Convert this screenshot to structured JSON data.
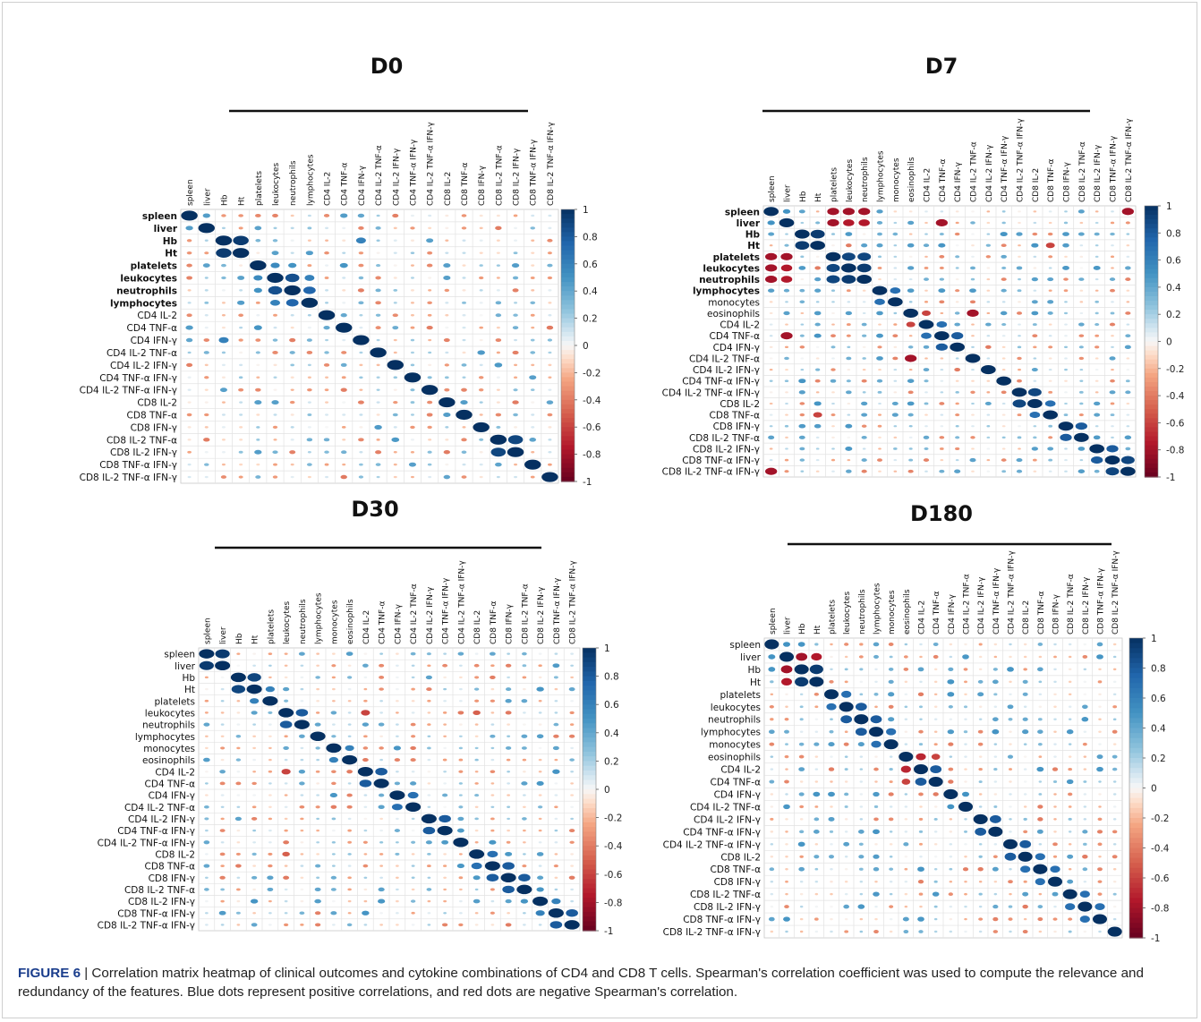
{
  "figure": {
    "label": "FIGURE 6",
    "caption": " | Correlation matrix heatmap of clinical outcomes and cytokine combinations of CD4 and CD8 T cells. Spearman's correlation coefficient was used to compute the relevance and redundancy of the features. Blue dots represent positive correlations, and red dots are negative Spearman's correlation."
  },
  "colors": {
    "strong_positive": "#053061",
    "strong_negative": "#67001f",
    "neutral": "#f7f7f7"
  },
  "chart_data": [
    {
      "type": "heatmap",
      "panel": "D0",
      "variables": [
        "spleen",
        "liver",
        "Hb",
        "Ht",
        "platelets",
        "leukocytes",
        "neutrophils",
        "lymphocytes",
        "CD4 IL-2",
        "CD4 TNF-α",
        "CD4 IFN-γ",
        "CD4 IL-2 TNF-α",
        "CD4 IL-2 IFN-γ",
        "CD4 TNF-α IFN-γ",
        "CD4 IL-2 TNF-α IFN-γ",
        "CD8 IL-2",
        "CD8 TNF-α",
        "CD8 IFN-γ",
        "CD8 IL-2 TNF-α",
        "CD8 IL-2 IFN-γ",
        "CD8 TNF-α IFN-γ",
        "CD8 IL-2 TNF-α IFN-γ"
      ],
      "strong": [
        [
          0,
          1,
          0.45
        ],
        [
          2,
          3,
          0.95
        ],
        [
          2,
          10,
          0.6
        ],
        [
          4,
          5,
          0.55
        ],
        [
          4,
          6,
          0.5
        ],
        [
          5,
          6,
          0.85
        ],
        [
          5,
          7,
          0.6
        ],
        [
          6,
          7,
          0.75
        ],
        [
          0,
          9,
          0.45
        ],
        [
          18,
          19,
          0.9
        ],
        [
          15,
          16,
          0.45
        ],
        [
          13,
          17,
          -0.3
        ],
        [
          8,
          19,
          0.3
        ],
        [
          1,
          18,
          -0.4
        ]
      ],
      "colorbar_ticks": [
        1,
        0.8,
        0.6,
        0.4,
        0.2,
        0,
        -0.2,
        -0.4,
        -0.6,
        -0.8,
        -1
      ],
      "range": [
        -1,
        1
      ]
    },
    {
      "type": "heatmap",
      "panel": "D7",
      "variables": [
        "spleen",
        "liver",
        "Hb",
        "Ht",
        "platelets",
        "leukocytes",
        "neutrophils",
        "lymphocytes",
        "monocytes",
        "eosinophils",
        "CD4 IL-2",
        "CD4 TNF-α",
        "CD4 IFN-γ",
        "CD4 IL-2 TNF-α",
        "CD4 IL-2 IFN-γ",
        "CD4 TNF-α IFN-γ",
        "CD4 IL-2 TNF-α IFN-γ",
        "CD8 IL-2",
        "CD8 TNF-α",
        "CD8 IFN-γ",
        "CD8 IL-2 TNF-α",
        "CD8 IL-2 IFN-γ",
        "CD8 TNF-α IFN-γ",
        "CD8 IL-2 TNF-α IFN-γ"
      ],
      "strong": [
        [
          0,
          1,
          0.5
        ],
        [
          2,
          3,
          0.95
        ],
        [
          4,
          5,
          0.9
        ],
        [
          4,
          6,
          0.9
        ],
        [
          5,
          6,
          0.95
        ],
        [
          0,
          4,
          -0.8
        ],
        [
          0,
          5,
          -0.8
        ],
        [
          0,
          6,
          -0.8
        ],
        [
          1,
          4,
          -0.8
        ],
        [
          1,
          5,
          -0.75
        ],
        [
          1,
          6,
          -0.75
        ],
        [
          7,
          8,
          0.7
        ],
        [
          10,
          11,
          0.7
        ],
        [
          11,
          12,
          0.8
        ],
        [
          16,
          17,
          0.9
        ],
        [
          17,
          18,
          0.7
        ],
        [
          20,
          19,
          0.8
        ],
        [
          21,
          22,
          0.8
        ],
        [
          22,
          23,
          0.9
        ],
        [
          9,
          13,
          -0.8
        ],
        [
          9,
          10,
          -0.6
        ],
        [
          1,
          11,
          -0.8
        ],
        [
          0,
          23,
          -0.8
        ],
        [
          3,
          18,
          -0.6
        ]
      ],
      "colorbar_ticks": [
        1,
        0.8,
        0.6,
        0.4,
        0.2,
        0,
        -0.2,
        -0.4,
        -0.6,
        -0.8,
        -1
      ],
      "range": [
        -1,
        1
      ]
    },
    {
      "type": "heatmap",
      "panel": "D30",
      "variables": [
        "spleen",
        "liver",
        "Hb",
        "Ht",
        "platelets",
        "leukocytes",
        "neutrophils",
        "lymphocytes",
        "monocytes",
        "eosinophils",
        "CD4 IL-2",
        "CD4 TNF-α",
        "CD4 IFN-γ",
        "CD4 IL-2 TNF-α",
        "CD4 IL-2 IFN-γ",
        "CD4 TNF-α IFN-γ",
        "CD4 IL-2 TNF-α IFN-γ",
        "CD8 IL-2",
        "CD8 TNF-α",
        "CD8 IFN-γ",
        "CD8 IL-2 TNF-α",
        "CD8 IL-2 IFN-γ",
        "CD8 TNF-α IFN-γ",
        "CD8 IL-2 TNF-α IFN-γ"
      ],
      "strong": [
        [
          0,
          1,
          0.95
        ],
        [
          2,
          3,
          0.9
        ],
        [
          3,
          4,
          0.6
        ],
        [
          5,
          6,
          0.8
        ],
        [
          8,
          9,
          0.6
        ],
        [
          10,
          11,
          0.8
        ],
        [
          12,
          13,
          0.7
        ],
        [
          14,
          15,
          0.8
        ],
        [
          17,
          18,
          0.7
        ],
        [
          18,
          19,
          0.8
        ],
        [
          19,
          20,
          0.8
        ],
        [
          21,
          22,
          0.6
        ],
        [
          22,
          23,
          0.8
        ],
        [
          5,
          10,
          -0.6
        ],
        [
          5,
          17,
          -0.5
        ],
        [
          10,
          5,
          -0.6
        ]
      ],
      "colorbar_ticks": [
        1,
        0.8,
        0.6,
        0.4,
        0.2,
        0,
        -0.2,
        -0.4,
        -0.6,
        -0.8,
        -1
      ],
      "range": [
        -1,
        1
      ]
    },
    {
      "type": "heatmap",
      "panel": "D180",
      "variables": [
        "spleen",
        "liver",
        "Hb",
        "Ht",
        "platelets",
        "leukocytes",
        "neutrophils",
        "lymphocytes",
        "monocytes",
        "eosinophils",
        "CD4 IL-2",
        "CD4 TNF-α",
        "CD4 IFN-γ",
        "CD4 IL-2 TNF-α",
        "CD4 IL-2 IFN-γ",
        "CD4 TNF-α IFN-γ",
        "CD4 IL-2 TNF-α IFN-γ",
        "CD8 IL-2",
        "CD8 TNF-α",
        "CD8 IFN-γ",
        "CD8 IL-2 TNF-α",
        "CD8 IL-2 IFN-γ",
        "CD8 TNF-α IFN-γ",
        "CD8 IL-2 TNF-α IFN-γ"
      ],
      "strong": [
        [
          0,
          1,
          0.5
        ],
        [
          2,
          3,
          0.95
        ],
        [
          1,
          2,
          -0.8
        ],
        [
          1,
          3,
          -0.75
        ],
        [
          4,
          5,
          0.7
        ],
        [
          5,
          6,
          0.8
        ],
        [
          6,
          7,
          0.8
        ],
        [
          7,
          8,
          0.7
        ],
        [
          9,
          10,
          -0.7
        ],
        [
          10,
          11,
          0.8
        ],
        [
          12,
          13,
          0.5
        ],
        [
          14,
          15,
          0.8
        ],
        [
          16,
          17,
          0.8
        ],
        [
          17,
          18,
          0.7
        ],
        [
          18,
          19,
          0.7
        ],
        [
          20,
          21,
          0.7
        ],
        [
          21,
          22,
          0.7
        ],
        [
          9,
          11,
          -0.6
        ]
      ],
      "colorbar_ticks": [
        1,
        0.8,
        0.6,
        0.4,
        0.2,
        0,
        -0.2,
        -0.4,
        -0.6,
        -0.8,
        -1
      ],
      "range": [
        -1,
        1
      ]
    }
  ]
}
